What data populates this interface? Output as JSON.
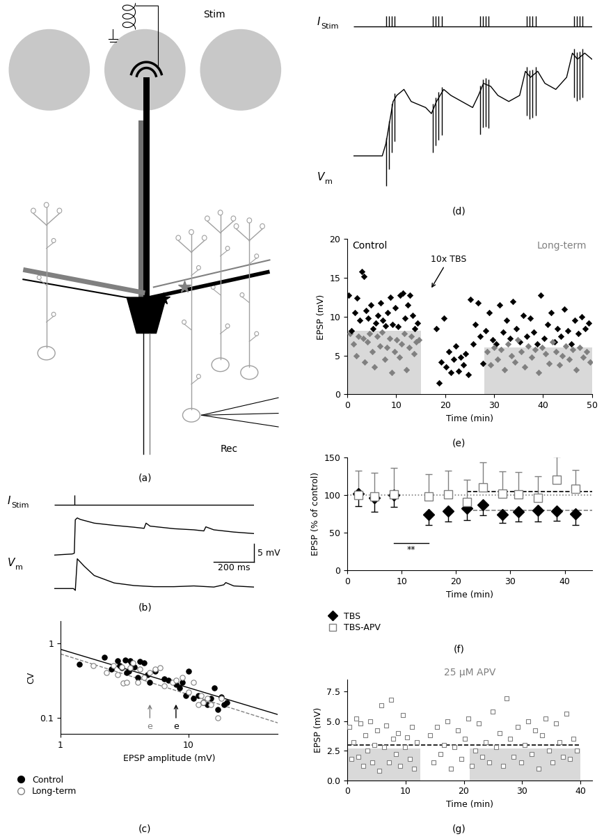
{
  "panel_labels": [
    "(a)",
    "(b)",
    "(c)",
    "(d)",
    "(e)",
    "(f)",
    "(g)"
  ],
  "diagram_a": {
    "stim_label": "Stim",
    "rec_label": "Rec"
  },
  "traces_b": {
    "stim_label": {
      "main": "I",
      "sub": "Stim"
    },
    "vm_label": {
      "main": "V",
      "sub": "m"
    },
    "pulses": [
      100
    ],
    "traces": [
      {
        "x": [
          0,
          90,
          100,
          105,
          115,
          130,
          200,
          300,
          400,
          450,
          460,
          480,
          600,
          700,
          750,
          760,
          800,
          900,
          1000
        ],
        "values": [
          0,
          0.3,
          0.5,
          9.5,
          10,
          9.6,
          8.6,
          8.0,
          7.5,
          7.2,
          8.6,
          7.8,
          7.1,
          6.8,
          6.5,
          7.6,
          6.8,
          6.2,
          5.8
        ]
      },
      {
        "x": [
          0,
          95,
          100,
          105,
          115,
          150,
          200,
          300,
          400,
          500,
          600,
          700,
          800,
          850,
          860,
          900,
          1000
        ],
        "values": [
          -9,
          -9,
          -9.2,
          -9.5,
          -1,
          -3,
          -5.5,
          -7.5,
          -8.2,
          -8.5,
          -8.5,
          -8.3,
          -8.6,
          -8.0,
          -7.4,
          -8.3,
          -8.6
        ]
      }
    ],
    "scalebar": {
      "x": 200,
      "y": 5,
      "x_label": "200 ms",
      "y_label": "5 mV"
    }
  },
  "traces_d": {
    "stim_label": {
      "main": "I",
      "sub": "Stim"
    },
    "vm_label": {
      "main": "V",
      "sub": "m"
    },
    "pulses": [
      45,
      49,
      53,
      57,
      110,
      114,
      118,
      122,
      175,
      179,
      183,
      187,
      240,
      244,
      248,
      252,
      305,
      309,
      313,
      317
    ],
    "trace": {
      "x": [
        0,
        40,
        45,
        55,
        60,
        70,
        80,
        90,
        100,
        108,
        115,
        125,
        135,
        150,
        165,
        173,
        180,
        190,
        200,
        215,
        230,
        238,
        245,
        255,
        265,
        280,
        295,
        303,
        310,
        320,
        330
      ],
      "values": [
        0,
        0,
        2,
        9,
        10,
        11,
        9,
        8.5,
        8,
        7,
        9,
        11,
        10,
        9,
        8,
        10,
        12,
        11.5,
        10,
        9,
        10,
        14,
        13,
        14,
        12,
        11,
        13,
        17,
        16,
        17,
        16
      ]
    },
    "artifact_depth": 7
  },
  "chart_data": [
    {
      "type": "scatter",
      "log": true,
      "xlabel": "EPSP amplitude (mV)",
      "ylabel": "CV",
      "xlim": [
        1,
        50
      ],
      "ylim": [
        0.06,
        2
      ],
      "xticks": [
        1,
        10
      ],
      "yticks": [
        0.1,
        1
      ],
      "legend": "upper left",
      "series": [
        {
          "name": "Control",
          "color": "#000000",
          "marker": "circle",
          "line_style": "solid",
          "x": [
            1.4,
            2.2,
            2.5,
            2.8,
            3.0,
            3.2,
            3.3,
            3.5,
            3.6,
            3.8,
            4.0,
            4.2,
            4.5,
            5.0,
            5.5,
            6.5,
            7.0,
            8.0,
            8.5,
            9.0,
            9.5,
            10.0,
            11.0,
            12.0,
            13.0,
            14.0,
            15.0,
            16.0,
            17.0,
            18.0,
            19.0,
            20.0,
            3.4,
            4.8,
            2.9
          ],
          "values": [
            0.52,
            0.65,
            0.45,
            0.58,
            0.47,
            0.6,
            0.4,
            0.58,
            0.55,
            0.48,
            0.35,
            0.57,
            0.55,
            0.3,
            0.42,
            0.33,
            0.32,
            0.28,
            0.25,
            0.3,
            0.2,
            0.42,
            0.18,
            0.2,
            0.16,
            0.15,
            0.18,
            0.25,
            0.13,
            0.19,
            0.15,
            0.16,
            0.42,
            0.38,
            0.5
          ],
          "fit_x": [
            1,
            50
          ],
          "fit_values": [
            0.83,
            0.11
          ]
        },
        {
          "name": "Long-term",
          "color": "#808080",
          "marker": "open_circle",
          "line_style": "dashed",
          "x": [
            1.8,
            2.3,
            2.6,
            2.8,
            3.1,
            3.3,
            3.5,
            3.7,
            4.0,
            4.2,
            4.5,
            5.0,
            5.5,
            6.0,
            7.5,
            8.0,
            9.0,
            10.0,
            11.0,
            12.0,
            12.5,
            13.0,
            14.0,
            15.0,
            17.0,
            18.0,
            3.0,
            6.5
          ],
          "values": [
            0.5,
            0.4,
            0.5,
            0.38,
            0.29,
            0.3,
            0.47,
            0.55,
            0.3,
            0.45,
            0.35,
            0.4,
            0.45,
            0.47,
            0.3,
            0.32,
            0.35,
            0.22,
            0.3,
            0.15,
            0.2,
            0.16,
            0.18,
            0.15,
            0.1,
            0.18,
            0.48,
            0.27
          ],
          "fit_x": [
            1,
            50
          ],
          "fit_values": [
            0.72,
            0.085
          ]
        }
      ],
      "annotations": [
        {
          "text": "e",
          "x": 5,
          "color": "#808080"
        },
        {
          "text": "e",
          "x": 8,
          "color": "#000000"
        }
      ]
    },
    {
      "type": "scatter",
      "xlabel": "Time (min)",
      "ylabel": "EPSP (mV)",
      "xlim": [
        0,
        50
      ],
      "ylim": [
        0,
        20
      ],
      "xticks": [
        0,
        10,
        20,
        30,
        40,
        50
      ],
      "yticks": [
        0,
        5,
        10,
        15,
        20
      ],
      "texts": [
        {
          "text": "Control",
          "color": "#000000"
        },
        {
          "text": "Long-term",
          "color": "#808080"
        }
      ],
      "annotations": [
        {
          "text": "10x TBS",
          "x": 17
        }
      ],
      "shaded": [
        {
          "x": [
            0,
            15
          ],
          "value": 8.2
        },
        {
          "x": [
            28,
            50
          ],
          "value": 6
        }
      ],
      "series": [
        {
          "color": "#808080",
          "marker": "diamond",
          "x": [
            0.5,
            1.2,
            1.8,
            2.3,
            3.2,
            3.6,
            4.1,
            4.6,
            5.1,
            5.6,
            6.1,
            6.6,
            7.1,
            7.6,
            8.1,
            8.6,
            9.1,
            9.6,
            10.1,
            10.6,
            11.1,
            11.6,
            12.1,
            12.6,
            13.1,
            13.6,
            14.1,
            14.6
          ],
          "values": [
            7.8,
            6.5,
            5.0,
            7.5,
            7.2,
            4.2,
            6.8,
            7.8,
            5.5,
            3.5,
            7.5,
            6.2,
            8.0,
            4.5,
            6.0,
            7.2,
            2.8,
            5.5,
            7.0,
            4.8,
            6.5,
            7.8,
            3.2,
            6.0,
            7.5,
            5.2,
            6.8,
            7.0
          ]
        },
        {
          "color": "#000000",
          "marker": "diamond",
          "x": [
            0.3,
            0.8,
            1.5,
            2.0,
            2.6,
            3.0,
            3.4,
            3.8,
            4.3,
            4.8,
            5.3,
            5.8,
            6.3,
            6.8,
            7.3,
            7.8,
            8.3,
            8.8,
            9.3,
            9.8,
            10.3,
            10.8,
            11.3,
            11.8,
            12.3,
            12.8,
            13.3,
            13.8,
            14.3
          ],
          "values": [
            12.8,
            8.2,
            10.5,
            12.4,
            9.5,
            15.8,
            15.2,
            10.8,
            9.8,
            11.5,
            8.5,
            9.2,
            10.2,
            11.8,
            9.5,
            8.8,
            10.5,
            12.5,
            9.0,
            11.2,
            8.7,
            12.8,
            13.0,
            9.8,
            11.5,
            12.8,
            10.2,
            8.5,
            9.2
          ]
        },
        {
          "color": "#000000",
          "marker": "diamond",
          "x": [
            18.2,
            18.7,
            19.2,
            19.7,
            20.2,
            20.7,
            21.2,
            21.7,
            22.2,
            22.7,
            23.2,
            23.7,
            24.2,
            24.7,
            25.2,
            25.7,
            26.2,
            26.7,
            27.2,
            27.7,
            28.3,
            29.0,
            29.7,
            30.4,
            31.1,
            31.8,
            32.5,
            33.2,
            33.9,
            34.6,
            35.3,
            36.0,
            36.7,
            37.4,
            38.1,
            38.8,
            39.5,
            40.2,
            40.9,
            41.6,
            42.3,
            43.0,
            43.7,
            44.4,
            45.1,
            45.8,
            46.5,
            47.2,
            47.9,
            48.6,
            49.3
          ],
          "values": [
            8.5,
            1.5,
            4.2,
            9.8,
            3.5,
            5.5,
            2.8,
            4.5,
            6.2,
            3.0,
            4.8,
            3.8,
            5.2,
            2.5,
            12.2,
            6.5,
            9.0,
            11.8,
            7.5,
            4.0,
            8.2,
            10.5,
            7.0,
            6.5,
            11.5,
            8.0,
            9.5,
            7.2,
            12.0,
            8.5,
            6.8,
            10.2,
            7.5,
            9.8,
            8.0,
            6.5,
            12.8,
            7.2,
            9.0,
            10.5,
            6.8,
            8.5,
            7.5,
            11.0,
            8.2,
            6.5,
            9.5,
            7.8,
            10.0,
            8.5,
            9.2
          ]
        },
        {
          "color": "#808080",
          "marker": "diamond",
          "x": [
            28.6,
            29.3,
            30.0,
            30.7,
            31.4,
            32.1,
            32.8,
            33.5,
            34.2,
            34.9,
            35.6,
            36.3,
            37.0,
            37.7,
            38.4,
            39.1,
            39.8,
            40.5,
            41.2,
            41.9,
            42.6,
            43.3,
            44.0,
            44.7,
            45.4,
            46.1,
            46.8,
            47.5,
            48.2,
            48.9,
            49.6
          ],
          "values": [
            5.5,
            3.8,
            6.0,
            4.5,
            5.8,
            3.2,
            6.5,
            5.0,
            4.2,
            7.0,
            5.5,
            3.5,
            6.2,
            4.8,
            5.8,
            2.8,
            6.0,
            5.2,
            4.0,
            6.8,
            5.5,
            3.8,
            5.0,
            6.2,
            4.5,
            5.8,
            3.2,
            6.0,
            4.8,
            5.5,
            4.2
          ]
        }
      ]
    },
    {
      "type": "scatter",
      "xlabel": "Time (min)",
      "ylabel": "EPSP (% of control)",
      "xlim": [
        0,
        45
      ],
      "ylim": [
        0,
        150
      ],
      "xticks": [
        0,
        10,
        20,
        30,
        40
      ],
      "yticks": [
        0,
        50,
        100,
        150
      ],
      "legend": "upper left",
      "series": [
        {
          "name": "TBS",
          "color": "#000000",
          "marker": "diamond",
          "x": [
            2,
            5,
            8.5,
            15,
            18.5,
            22,
            25,
            28.5,
            31.5,
            35,
            38.5,
            42
          ],
          "values": [
            102,
            96,
            100,
            74,
            79,
            82,
            87,
            74,
            78,
            80,
            79,
            75
          ],
          "errors_low": [
            17,
            18,
            16,
            14,
            14,
            15,
            14,
            11,
            13,
            15,
            13,
            15
          ]
        },
        {
          "name": "TBS-APV",
          "color": "#808080",
          "marker": "open_square",
          "x": [
            2,
            5,
            8.5,
            15,
            18.5,
            22,
            25,
            28.5,
            31.5,
            35,
            38.5,
            42
          ],
          "values": [
            100,
            98,
            101,
            98,
            101,
            91,
            110,
            102,
            101,
            96,
            120,
            108
          ],
          "errors_high": [
            32,
            31,
            35,
            30,
            31,
            29,
            33,
            29,
            29,
            29,
            31,
            25
          ]
        }
      ],
      "reference_lines": [
        {
          "value": 100,
          "x": [
            0,
            45
          ],
          "line_style": "dotted",
          "color": "#808080"
        },
        {
          "value": 105,
          "x": [
            22,
            45
          ],
          "line_style": "dashed",
          "color": "#000000"
        },
        {
          "value": 80,
          "x": [
            22,
            45
          ],
          "line_style": "dashed",
          "color": "#808080"
        }
      ],
      "significance": {
        "text": "**",
        "x": [
          8.5,
          15
        ],
        "value": 36
      }
    },
    {
      "type": "scatter",
      "title": "25 μM APV",
      "xlabel": "Time (min)",
      "ylabel": "EPSP (mV)",
      "xlim": [
        0,
        42
      ],
      "ylim": [
        0,
        8.5
      ],
      "xticks": [
        0,
        10,
        20,
        30,
        40
      ],
      "yticks": [
        {
          "value": 0,
          "label": "0.0"
        },
        2.5,
        {
          "value": 5,
          "label": "5.0"
        },
        7.5
      ],
      "shaded": [
        {
          "x": [
            0,
            12.5
          ],
          "value": 2.7
        },
        {
          "x": [
            21,
            40
          ],
          "value": 2.7
        }
      ],
      "reference_lines": [
        {
          "value": 3.0,
          "x": [
            0,
            40
          ],
          "line_style": "dashed",
          "color": "#000000"
        }
      ],
      "series": [
        {
          "color": "#808080",
          "marker": "open_square",
          "x": [
            0.3,
            0.7,
            1.1,
            1.5,
            1.9,
            2.3,
            2.7,
            3.1,
            3.5,
            3.9,
            4.3,
            4.7,
            5.1,
            5.5,
            5.9,
            6.3,
            6.7,
            7.1,
            7.5,
            7.9,
            8.3,
            8.7,
            9.1,
            9.5,
            9.9,
            10.3,
            10.7,
            11.1,
            11.5,
            11.9,
            14.2,
            14.8,
            15.4,
            16.0,
            16.6,
            17.2,
            17.8,
            18.4,
            19.0,
            19.6,
            20.2,
            20.8,
            21.4,
            22.0,
            22.6,
            23.2,
            23.8,
            24.4,
            25.0,
            25.6,
            26.2,
            26.8,
            27.4,
            28.0,
            28.6,
            29.2,
            29.8,
            30.4,
            31.0,
            31.6,
            32.2,
            32.8,
            33.4,
            34.0,
            34.6,
            35.2,
            35.8,
            36.4,
            37.0,
            37.6,
            38.2,
            38.8,
            39.4
          ],
          "values": [
            4.5,
            1.8,
            3.2,
            5.2,
            2.0,
            4.8,
            1.2,
            3.8,
            2.5,
            5.0,
            1.5,
            3.0,
            4.2,
            0.8,
            6.3,
            2.8,
            4.6,
            1.5,
            6.8,
            3.5,
            2.2,
            4.0,
            1.2,
            5.5,
            2.8,
            3.6,
            1.8,
            4.5,
            1.0,
            3.2,
            3.8,
            1.5,
            4.5,
            2.2,
            3.0,
            5.0,
            1.0,
            2.8,
            4.2,
            1.8,
            3.5,
            5.2,
            1.2,
            2.5,
            4.8,
            2.0,
            3.2,
            1.5,
            5.8,
            2.8,
            4.0,
            1.2,
            6.9,
            3.5,
            2.0,
            4.5,
            1.5,
            3.0,
            5.0,
            2.2,
            4.2,
            1.0,
            3.8,
            5.2,
            2.5,
            1.5,
            4.8,
            3.2,
            2.0,
            5.6,
            1.8,
            3.5,
            2.5
          ]
        }
      ]
    }
  ]
}
